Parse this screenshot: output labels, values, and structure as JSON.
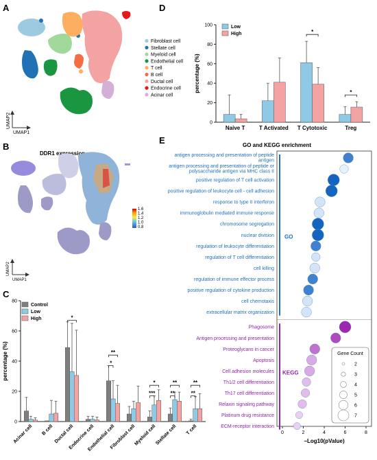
{
  "panels": {
    "a": "A",
    "b": "B",
    "c": "C",
    "d": "D",
    "e": "E"
  },
  "umap": {
    "x_label": "UMAP1",
    "y_label": "UMAP2",
    "legend": [
      {
        "label": "Fibroblast cell",
        "color": "#9ecae1"
      },
      {
        "label": "Stellate cell",
        "color": "#2171b5"
      },
      {
        "label": "Myeloid cell",
        "color": "#a1d99b"
      },
      {
        "label": "Endothelial cell",
        "color": "#1a9641"
      },
      {
        "label": "T cell",
        "color": "#fdae61"
      },
      {
        "label": "B cell",
        "color": "#f46d43"
      },
      {
        "label": "Ductal cell",
        "color": "#f4a3a3"
      },
      {
        "label": "Endocrine cell",
        "color": "#e31a1c"
      },
      {
        "label": "Acinar cell",
        "color": "#d4b0d6"
      }
    ]
  },
  "ddr1": {
    "title": "DDR1 expression",
    "x_label": "UMAP1",
    "y_label": "UMAP2",
    "colorbar": [
      "1.6",
      "1.4",
      "1.2",
      "1.0",
      "0.8"
    ]
  },
  "chart_data": [
    {
      "panel": "C",
      "type": "bar",
      "ylabel": "percentage (%)",
      "ylim": [
        0,
        80
      ],
      "yticks": [
        "0",
        "20",
        "40",
        "60",
        "80"
      ],
      "categories": [
        "Acinar cell",
        "B cell",
        "Ductal cell",
        "Endocrine cell",
        "Endothelial cell",
        "Fibroblast cell",
        "Myeloid cell",
        "Stellate cell",
        "T cell"
      ],
      "series": [
        {
          "name": "Control",
          "color": "#7f7f7f",
          "values": [
            7,
            0.5,
            49,
            1.5,
            27,
            5,
            3,
            5,
            0.5
          ],
          "err": [
            9,
            0,
            17,
            2,
            10,
            5,
            4,
            4,
            1
          ]
        },
        {
          "name": "Low",
          "color": "#8ecae6",
          "values": [
            1.5,
            5,
            33,
            1.5,
            15,
            8.5,
            11,
            14.5,
            8.5
          ],
          "err": [
            2,
            9,
            32,
            2,
            12,
            5,
            6,
            5,
            8
          ]
        },
        {
          "name": "High",
          "color": "#f4a3a3",
          "values": [
            1,
            5.5,
            30.5,
            1,
            12,
            12.5,
            14,
            13.5,
            8.5
          ],
          "err": [
            1.5,
            8,
            30,
            2,
            12,
            11,
            7,
            6,
            10
          ]
        }
      ],
      "significance": [
        "*",
        "**",
        "*",
        "*",
        "***",
        "**",
        "**",
        "**",
        "**",
        "**"
      ],
      "legend_position": "top-left"
    },
    {
      "panel": "D",
      "type": "bar",
      "ylabel": "percentage (%)",
      "ylim": [
        0,
        100
      ],
      "yticks": [
        "0",
        "20",
        "40",
        "60",
        "80",
        "100"
      ],
      "categories": [
        "Naive T",
        "T Activated",
        "T Cytotoxic",
        "Treg"
      ],
      "series": [
        {
          "name": "Low",
          "color": "#8ecae6",
          "values": [
            8,
            22,
            61,
            8
          ],
          "err": [
            20,
            18,
            22,
            8
          ]
        },
        {
          "name": "High",
          "color": "#f4a3a3",
          "values": [
            3.5,
            41,
            39,
            15.5
          ],
          "err": [
            4.5,
            25,
            17,
            5.5
          ]
        }
      ],
      "significance": [
        "*",
        "*"
      ],
      "legend_position": "top-left"
    },
    {
      "panel": "E",
      "type": "scatter",
      "title": "GO and KEGG enrichment",
      "xlabel": "−Log10(pValue)",
      "xlim": [
        0,
        8
      ],
      "xticks": [
        "0",
        "2",
        "4",
        "6",
        "8"
      ],
      "size_legend_title": "Gene Count",
      "size_legend": [
        "2",
        "3",
        "4",
        "5",
        "6",
        "7"
      ],
      "groups": [
        {
          "name": "GO",
          "color": "#1f6fbf"
        },
        {
          "name": "KEGG",
          "color": "#8e24aa"
        }
      ],
      "terms": [
        {
          "label": "antigen processing and presentation of peptide antigen",
          "label_lines": [
            "antigen processing and presentation of peptide",
            "antigen"
          ],
          "x": 6.3,
          "count": 4,
          "c": 0.8,
          "group": "GO"
        },
        {
          "label": "antigen processing and presentation of peptide or polysaccharide antigen via MHC class II",
          "label_lines": [
            "antigen processing and presentation of peptide or",
            "polysaccharide antigen via MHC class II"
          ],
          "x": 5.9,
          "count": 3,
          "c": 0.0,
          "group": "GO"
        },
        {
          "label": "positive regulation of T cell activation",
          "x": 4.9,
          "count": 5,
          "c": 1.0,
          "group": "GO"
        },
        {
          "label": "positive regulation of leukocyte cell - cell adhesion",
          "x": 4.7,
          "count": 5,
          "c": 1.0,
          "group": "GO"
        },
        {
          "label": "response to type II interferon",
          "x": 3.6,
          "count": 4,
          "c": 0.1,
          "group": "GO"
        },
        {
          "label": "immunoglobulin mediated immune response",
          "x": 3.5,
          "count": 4,
          "c": 0.1,
          "group": "GO"
        },
        {
          "label": "chromosome segregation",
          "x": 3.4,
          "count": 5,
          "c": 1.0,
          "group": "GO"
        },
        {
          "label": "nuclear division",
          "x": 3.4,
          "count": 5,
          "c": 1.0,
          "group": "GO"
        },
        {
          "label": "regulation of leukocyte differentiation",
          "x": 3.2,
          "count": 4,
          "c": 0.8,
          "group": "GO"
        },
        {
          "label": "regulation of T cell differentiation",
          "x": 3.2,
          "count": 3,
          "c": 0.1,
          "group": "GO"
        },
        {
          "label": "cell killing",
          "x": 3.1,
          "count": 4,
          "c": 0.1,
          "group": "GO"
        },
        {
          "label": "regulation of immune effector process",
          "x": 2.9,
          "count": 4,
          "c": 0.8,
          "group": "GO"
        },
        {
          "label": "positive regulation of cytokine production",
          "x": 2.5,
          "count": 4,
          "c": 0.8,
          "group": "GO"
        },
        {
          "label": "cell chemotaxis",
          "x": 2.4,
          "count": 4,
          "c": 0.1,
          "group": "GO"
        },
        {
          "label": "extracellular matrix organization",
          "x": 2.3,
          "count": 4,
          "c": 0.1,
          "group": "GO"
        },
        {
          "label": "Phagosome",
          "x": 6.0,
          "count": 5,
          "c": 1.0,
          "group": "KEGG"
        },
        {
          "label": "Antigen processing and presentation",
          "x": 5.1,
          "count": 4,
          "c": 0.8,
          "group": "KEGG"
        },
        {
          "label": "Proteoglycans in cancer",
          "x": 3.1,
          "count": 4,
          "c": 0.6,
          "group": "KEGG"
        },
        {
          "label": "Apoptosis",
          "x": 2.8,
          "count": 4,
          "c": 0.3,
          "group": "KEGG"
        },
        {
          "label": "Cell adhesion molecules",
          "x": 2.6,
          "count": 4,
          "c": 0.3,
          "group": "KEGG"
        },
        {
          "label": "Th1/2 cell differentiation",
          "x": 2.3,
          "count": 3,
          "c": 0.2,
          "group": "KEGG"
        },
        {
          "label": "Th17 cell differentiation",
          "x": 2.2,
          "count": 3,
          "c": 0.2,
          "group": "KEGG"
        },
        {
          "label": "Relaxin signaling pathway",
          "x": 1.9,
          "count": 3,
          "c": 0.2,
          "group": "KEGG"
        },
        {
          "label": "Platinum drug resistance",
          "x": 1.6,
          "count": 2,
          "c": 0.1,
          "group": "KEGG"
        },
        {
          "label": "ECM-receptor interaction",
          "x": 1.4,
          "count": 2,
          "c": 0.1,
          "group": "KEGG"
        }
      ]
    }
  ]
}
